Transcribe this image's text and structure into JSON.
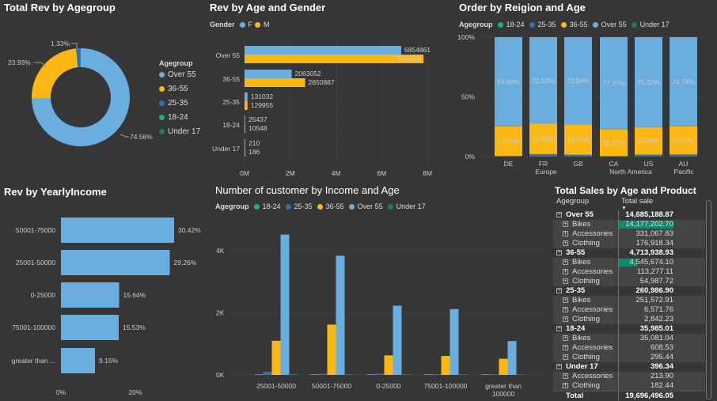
{
  "colors": {
    "18-24": "#1aae8c",
    "25-35": "#2f6fb2",
    "36-55": "#fbb814",
    "Over 55": "#6aaee0",
    "Under 17": "#1b7a6a",
    "F": "#6aaee0",
    "M": "#fbb814"
  },
  "donut": {
    "title": "Total Rev by Agegroup",
    "legend_title": "Agegroup",
    "legend": [
      "Over 55",
      "36-55",
      "25-35",
      "18-24",
      "Under 17"
    ],
    "chart_data": {
      "type": "pie",
      "slices": [
        {
          "label": "Over 55",
          "value": 74.56,
          "text": "74.56%"
        },
        {
          "label": "36-55",
          "value": 23.93,
          "text": "23.93%"
        },
        {
          "label": "25-35",
          "value": 1.33,
          "text": "1.33%"
        },
        {
          "label": "18-24",
          "value": 0.18
        },
        {
          "label": "Under 17",
          "value": 0.002
        }
      ]
    }
  },
  "gender": {
    "title": "Rev by Age and Gender",
    "legend_title": "Gender",
    "legend": [
      "F",
      "M"
    ],
    "chart_data": {
      "type": "bar",
      "orientation": "horizontal",
      "categories": [
        "Over 55",
        "36-55",
        "25-35",
        "18-24",
        "Under 17"
      ],
      "series": [
        {
          "name": "F",
          "values": [
            6854861,
            2063052,
            131032,
            25437,
            210
          ]
        },
        {
          "name": "M",
          "values": [
            7830328,
            2650887,
            129955,
            10548,
            186
          ]
        }
      ],
      "xlim": [
        0,
        8000000
      ],
      "ticks": [
        "0M",
        "2M",
        "4M",
        "6M",
        "8M"
      ]
    }
  },
  "region": {
    "title": "Order by Reigion and Age",
    "legend_title": "Agegroup",
    "legend": [
      "18-24",
      "25-35",
      "36-55",
      "Over 55",
      "Under 17"
    ],
    "chart_data": {
      "type": "bar",
      "stacked": "percent",
      "categories": [
        "DE",
        "FR",
        "GB",
        "CA",
        "US",
        "AU"
      ],
      "groups": [
        {
          "label": "Europe",
          "span": [
            "FR"
          ]
        },
        {
          "label": "North America",
          "span": [
            "CA",
            "US"
          ]
        },
        {
          "label": "Pacific",
          "span": [
            "AU"
          ]
        }
      ],
      "series": [
        {
          "name": "25-35",
          "values": [
            0.61,
            2.08,
            1.51,
            0.41,
            1.6,
            1.74
          ]
        },
        {
          "name": "36-55",
          "values": [
            24.7,
            25.4,
            25.55,
            22.22,
            23.08,
            23.52
          ]
        },
        {
          "name": "Over 55",
          "values": [
            74.69,
            72.52,
            72.94,
            77.37,
            75.32,
            74.74
          ]
        }
      ],
      "ticks": [
        "0%",
        "50%",
        "100%"
      ]
    }
  },
  "income": {
    "title": "Rev by YearlyIncome",
    "chart_data": {
      "type": "bar",
      "orientation": "horizontal",
      "categories": [
        "50001-75000",
        "25001-50000",
        "0-25000",
        "75001-100000",
        "greater than ..."
      ],
      "values": [
        30.42,
        29.26,
        15.64,
        15.53,
        9.15
      ],
      "labels": [
        "30.42%",
        "29.26%",
        "15.64%",
        "15.53%",
        "9.15%"
      ],
      "ticks": [
        "0%",
        "20%"
      ]
    }
  },
  "customers": {
    "title": "Number of customer by Income and Age",
    "legend_title": "Agegroup",
    "legend": [
      "18-24",
      "25-35",
      "36-55",
      "Over 55",
      "Under 17"
    ],
    "chart_data": {
      "type": "bar",
      "categories": [
        "25001-50000",
        "50001-75000",
        "0-25000",
        "75001-100000",
        "greater than 100000"
      ],
      "series": [
        {
          "name": "18-24",
          "values": [
            15,
            10,
            10,
            0,
            10
          ]
        },
        {
          "name": "25-35",
          "values": [
            100,
            40,
            40,
            20,
            20
          ]
        },
        {
          "name": "36-55",
          "values": [
            1100,
            1620,
            630,
            610,
            520
          ]
        },
        {
          "name": "Over 55",
          "values": [
            4520,
            3840,
            2230,
            2120,
            1090
          ]
        },
        {
          "name": "Under 17",
          "values": [
            10,
            5,
            10,
            0,
            0
          ]
        }
      ],
      "ylim": [
        0,
        4800
      ],
      "ticks": [
        "0K",
        "2K",
        "4K"
      ]
    }
  },
  "table": {
    "title": "Total Sales by Age and Product",
    "col1": "Agegroup",
    "col2": "Total sale",
    "rows": [
      {
        "type": "grp",
        "label": "Over 55",
        "value": "14,685,188.87"
      },
      {
        "type": "sub",
        "label": "Bikes",
        "value": "14,177,202.70",
        "bar": 0.965
      },
      {
        "type": "sub",
        "label": "Accessories",
        "value": "331,067.83"
      },
      {
        "type": "sub",
        "label": "Clothing",
        "value": "176,918.34"
      },
      {
        "type": "grp",
        "label": "36-55",
        "value": "4,713,938.93"
      },
      {
        "type": "sub",
        "label": "Bikes",
        "value": "4,545,674.10",
        "bar": 0.32
      },
      {
        "type": "sub",
        "label": "Accessories",
        "value": "113,277.11"
      },
      {
        "type": "sub",
        "label": "Clothing",
        "value": "54,987.72"
      },
      {
        "type": "grp",
        "label": "25-35",
        "value": "260,986.90"
      },
      {
        "type": "sub",
        "label": "Bikes",
        "value": "251,572.91"
      },
      {
        "type": "sub",
        "label": "Accessories",
        "value": "6,571.76"
      },
      {
        "type": "sub",
        "label": "Clothing",
        "value": "2,842.23"
      },
      {
        "type": "grp",
        "label": "18-24",
        "value": "35,985.01"
      },
      {
        "type": "sub",
        "label": "Bikes",
        "value": "35,081.04"
      },
      {
        "type": "sub",
        "label": "Accessories",
        "value": "608.53"
      },
      {
        "type": "sub",
        "label": "Clothing",
        "value": "295.44"
      },
      {
        "type": "grp",
        "label": "Under 17",
        "value": "396.34"
      },
      {
        "type": "sub",
        "label": "Accessories",
        "value": "213.90"
      },
      {
        "type": "sub",
        "label": "Clothing",
        "value": "182.44"
      }
    ],
    "total_label": "Total",
    "total_value": "19,696,496.05"
  }
}
